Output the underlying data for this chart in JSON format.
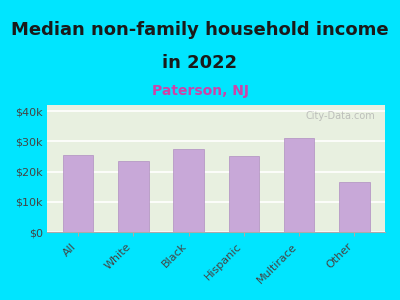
{
  "title_line1": "Median non-family household income",
  "title_line2": "in 2022",
  "subtitle": "Paterson, NJ",
  "categories": [
    "All",
    "White",
    "Black",
    "Hispanic",
    "Multirace",
    "Other"
  ],
  "values": [
    25500,
    23500,
    27500,
    25000,
    31000,
    16500
  ],
  "bar_color": "#c8a8d8",
  "bar_edge_color": "#b090c0",
  "title_color": "#1a1a1a",
  "subtitle_color": "#cc44aa",
  "background_outer": "#00e5ff",
  "background_chart": "#f0f5e8",
  "chart_bg_top": "#e8f0e0",
  "chart_bg_bottom": "#f5f5e8",
  "ylabel_color": "#444444",
  "xlabel_color": "#444444",
  "yticks": [
    0,
    10000,
    20000,
    30000,
    40000
  ],
  "ytick_labels": [
    "$0",
    "$10k",
    "$20k",
    "$30k",
    "$40k"
  ],
  "ylim": [
    0,
    42000
  ],
  "watermark": "City-Data.com",
  "title_fontsize": 13,
  "subtitle_fontsize": 10,
  "tick_fontsize": 8
}
